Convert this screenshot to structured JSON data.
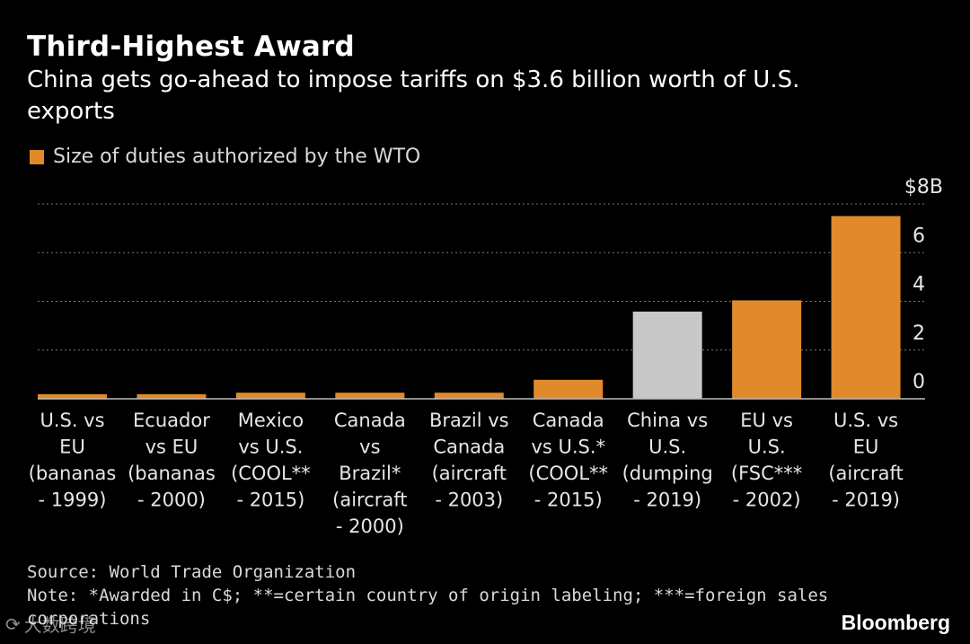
{
  "chart_data": {
    "type": "bar",
    "title": "Third-Highest Award",
    "subtitle": "China gets go-ahead to impose tariffs on $3.6 billion worth of U.S. exports",
    "legend": "Size of duties authorized by the WTO",
    "y_unit_label": "$8B",
    "ylim": [
      0,
      8
    ],
    "y_ticks": [
      {
        "value": 0,
        "label": "0"
      },
      {
        "value": 2,
        "label": "2"
      },
      {
        "value": 4,
        "label": "4"
      },
      {
        "value": 6,
        "label": "6"
      }
    ],
    "gridlines": [
      2,
      4,
      6,
      8
    ],
    "categories": [
      [
        "U.S. vs",
        "EU",
        "(bananas",
        "- 1999)"
      ],
      [
        "Ecuador",
        "vs EU",
        "(bananas",
        "- 2000)"
      ],
      [
        "Mexico",
        "vs U.S.",
        "(COOL**",
        "- 2015)"
      ],
      [
        "Canada",
        "vs",
        "Brazil*",
        "(aircraft",
        "- 2000)"
      ],
      [
        "Brazil vs",
        "Canada",
        "(aircraft",
        "- 2003)"
      ],
      [
        "Canada",
        "vs U.S.*",
        "(COOL**",
        "- 2015)"
      ],
      [
        "China vs",
        "U.S.",
        "(dumping",
        "- 2019)"
      ],
      [
        "EU vs",
        "U.S.",
        "(FSC***",
        "- 2002)"
      ],
      [
        "U.S. vs",
        "EU",
        "(aircraft",
        "- 2019)"
      ]
    ],
    "values": [
      0.19,
      0.19,
      0.25,
      0.25,
      0.25,
      0.78,
      3.58,
      4.04,
      7.5
    ],
    "highlight_index": 6,
    "colors": {
      "bar": "#e08a2c",
      "highlight": "#c8c8c8",
      "grid": "#7a7a7a",
      "axis": "#bdbdbd",
      "text": "#e6e6e6"
    }
  },
  "footer": {
    "source": "Source: World Trade Organization",
    "note": "Note: *Awarded in C$; **=certain country of origin labeling; ***=foreign sales corporations"
  },
  "brand": "Bloomberg",
  "watermark": "大数跨境"
}
